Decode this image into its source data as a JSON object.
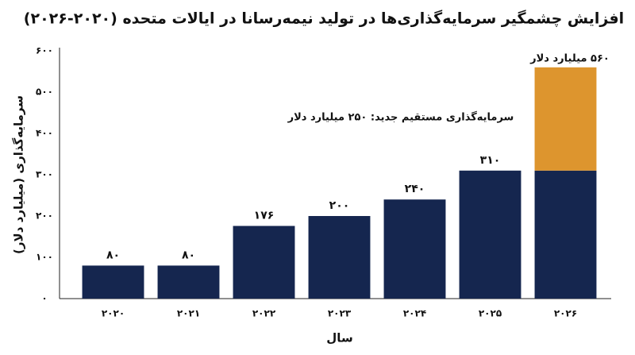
{
  "chart_data": {
    "type": "bar",
    "stacked": true,
    "title": "افزایش چشمگیر سرمایه‌گذاری‌ها در تولید نیمه‌رسانا در ایالات متحده (۲۰۲۰-۲۰۲۶)",
    "x_label": "سال",
    "y_label": "سرمایه‌گذاری (میلیارد دلار)",
    "categories": [
      "۲۰۲۰",
      "۲۰۲۱",
      "۲۰۲۲",
      "۲۰۲۳",
      "۲۰۲۴",
      "۲۰۲۵",
      "۲۰۲۶"
    ],
    "series": [
      {
        "color": "#15264f",
        "values": [
          80,
          80,
          176,
          200,
          240,
          310,
          310
        ],
        "value_labels": [
          "۸۰",
          "۸۰",
          "۱۷۶",
          "۲۰۰",
          "۲۴۰",
          "۳۱۰",
          null
        ]
      },
      {
        "color": "#dd952e",
        "values": [
          null,
          null,
          null,
          null,
          null,
          null,
          250
        ]
      }
    ],
    "annotations": [
      "۵۶۰ میلیارد دلار",
      "سرمایه‌گذاری مستقیم جدید: ۲۵۰ میلیارد دلار"
    ],
    "ylim": [
      0,
      600
    ],
    "yticks": [
      {
        "value": 0,
        "label": "۰"
      },
      {
        "value": 100,
        "label": "۱۰۰"
      },
      {
        "value": 200,
        "label": "۲۰۰"
      },
      {
        "value": 300,
        "label": "۳۰۰"
      },
      {
        "value": 400,
        "label": "۴۰۰"
      },
      {
        "value": 500,
        "label": "۵۰۰"
      },
      {
        "value": 600,
        "label": "۶۰۰"
      }
    ],
    "grid": false
  }
}
